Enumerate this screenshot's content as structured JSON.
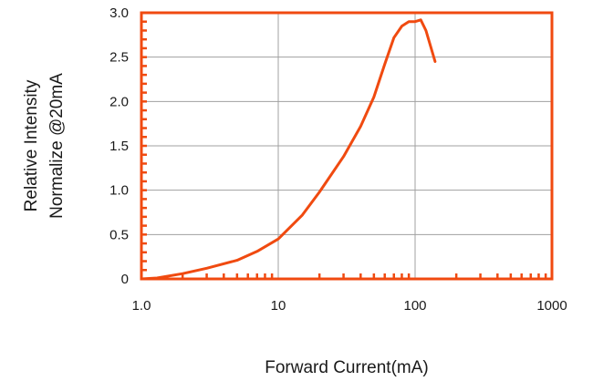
{
  "chart_data": {
    "type": "line",
    "title": "",
    "xlabel": "Forward Current(mA)",
    "ylabel": [
      "Relative Intensity",
      "Normalize @20mA"
    ],
    "x_scale": "log",
    "xlim": [
      1,
      1000
    ],
    "ylim": [
      0,
      3.0
    ],
    "x_ticks": [
      1,
      10,
      100,
      1000
    ],
    "x_tick_labels": [
      "1.0",
      "10",
      "100",
      "1000"
    ],
    "y_ticks": [
      0,
      0.5,
      1.0,
      1.5,
      2.0,
      2.5,
      3.0
    ],
    "y_tick_labels": [
      "0",
      "0.5",
      "1.0",
      "1.5",
      "2.0",
      "2.5",
      "3.0"
    ],
    "grid": true,
    "legend": "none",
    "colors": {
      "frame": "#f04a10",
      "line": "#f04a10",
      "grid": "#a0a0a0"
    },
    "series": [
      {
        "x": [
          1.0,
          1.3,
          2,
          3,
          5,
          7,
          10,
          15,
          20,
          30,
          40,
          50,
          60,
          70,
          80,
          90,
          100,
          110,
          120,
          140
        ],
        "values": [
          0,
          0.01,
          0.06,
          0.12,
          0.21,
          0.31,
          0.45,
          0.72,
          0.98,
          1.38,
          1.72,
          2.05,
          2.42,
          2.72,
          2.85,
          2.9,
          2.9,
          2.92,
          2.8,
          2.45
        ]
      }
    ]
  }
}
